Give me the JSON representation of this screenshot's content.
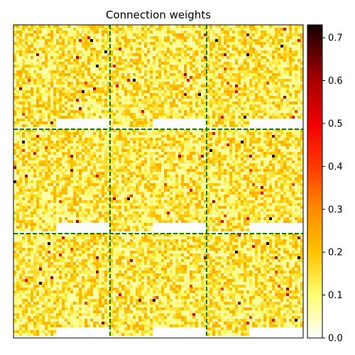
{
  "chart_data": {
    "type": "heatmap",
    "title": "Connection weights",
    "xlabel": "",
    "ylabel": "",
    "grid": false,
    "colormap": "hot_r",
    "value_range": [
      0.0,
      0.73
    ],
    "grid_blocks": {
      "rows": 3,
      "cols": 3
    },
    "divider_color": "#008000",
    "divider_style": "dashed",
    "colorbar": {
      "ticks": [
        0.0,
        0.1,
        0.2,
        0.3,
        0.4,
        0.5,
        0.6,
        0.7
      ],
      "tick_labels": [
        "0.0",
        "0.1",
        "0.2",
        "0.3",
        "0.4",
        "0.5",
        "0.6",
        "0.7"
      ],
      "stops": [
        {
          "value": 0.0,
          "color": "#ffffff"
        },
        {
          "value": 0.1,
          "color": "#ffff70"
        },
        {
          "value": 0.2,
          "color": "#ffc400"
        },
        {
          "value": 0.3,
          "color": "#ff8a00"
        },
        {
          "value": 0.4,
          "color": "#ff3a00"
        },
        {
          "value": 0.5,
          "color": "#f00000"
        },
        {
          "value": 0.6,
          "color": "#a80000"
        },
        {
          "value": 0.7,
          "color": "#3a0000"
        },
        {
          "value": 0.73,
          "color": "#0b0000"
        }
      ]
    },
    "block_empty_tail_fraction": [
      0.55,
      0.55,
      0.55
    ],
    "typical_value": 0.15,
    "value_spread": [
      0.05,
      0.25
    ],
    "hotspot_values": [
      0.4,
      0.5,
      0.6,
      0.73
    ]
  }
}
